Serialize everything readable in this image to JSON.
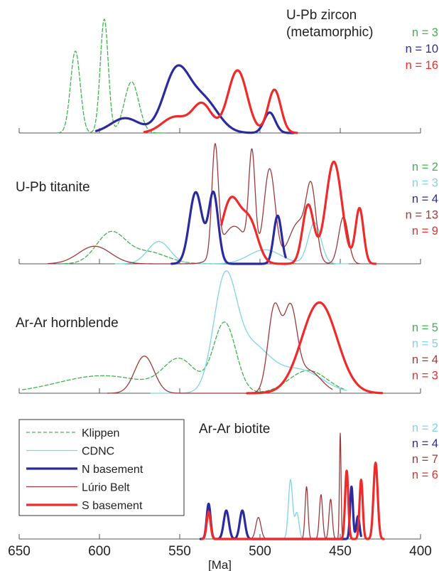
{
  "chart_data": {
    "type": "line",
    "xlabel": "[Ma]",
    "x_axis_reversed": true,
    "xlim": [
      650,
      400
    ],
    "xticks": [
      650,
      600,
      550,
      500,
      450,
      400
    ],
    "series_styles": [
      {
        "name": "Klippen",
        "color": "#3cb44b",
        "dash": "dashed",
        "weight": "thin"
      },
      {
        "name": "CDNC",
        "color": "#7fd3e6",
        "dash": "solid",
        "weight": "thin"
      },
      {
        "name": "N basement",
        "color": "#2b2b9e",
        "dash": "solid",
        "weight": "thick"
      },
      {
        "name": "Lúrio Belt",
        "color": "#9b3a3a",
        "dash": "solid",
        "weight": "thin"
      },
      {
        "name": "S basement",
        "color": "#ee2a2a",
        "dash": "solid",
        "weight": "thick"
      }
    ],
    "legend": {
      "placement": "bottom-left",
      "entries": [
        "Klippen",
        "CDNC",
        "N basement",
        "Lúrio Belt",
        "S basement"
      ]
    },
    "panels": [
      {
        "title_lines": [
          "U-Pb zircon",
          "(metamorphic)"
        ],
        "counts": [
          {
            "series": "Klippen",
            "text": "n = 3"
          },
          {
            "series": "N basement",
            "text": "n = 10"
          },
          {
            "series": "S basement",
            "text": "n = 16"
          }
        ],
        "curves": {
          "Klippen": {
            "range": [
              626,
              559
            ],
            "peaks": [
              [
                615,
                0.72,
                3
              ],
              [
                597,
                1.0,
                2.5
              ],
              [
                580,
                0.45,
                4.5
              ]
            ]
          },
          "N basement": {
            "range": [
              602,
              479
            ],
            "peaks": [
              [
                584,
                0.13,
                9
              ],
              [
                552,
                0.54,
                8
              ],
              [
                535,
                0.28,
                9
              ],
              [
                494,
                0.18,
                3.5
              ]
            ]
          },
          "S basement": {
            "range": [
              572,
              477
            ],
            "peaks": [
              [
                553,
                0.14,
                8
              ],
              [
                536,
                0.25,
                6
              ],
              [
                514,
                0.55,
                6
              ],
              [
                491,
                0.38,
                4
              ]
            ]
          }
        }
      },
      {
        "title_lines": [
          "U-Pb titanite"
        ],
        "counts": [
          {
            "series": "Klippen",
            "text": "n = 2"
          },
          {
            "series": "CDNC",
            "text": "n = 3"
          },
          {
            "series": "N basement",
            "text": "n = 4"
          },
          {
            "series": "Lúrio Belt",
            "text": "n = 13"
          },
          {
            "series": "S basement",
            "text": "n = 9"
          }
        ],
        "curves": {
          "Klippen": {
            "range": [
              622,
              510
            ],
            "peaks": [
              [
                593,
                0.26,
                9
              ],
              [
                570,
                0.1,
                12
              ]
            ]
          },
          "CDNC": {
            "range": [
              590,
              445
            ],
            "peaks": [
              [
                563,
                0.19,
                7
              ],
              [
                497,
                0.12,
                10
              ],
              [
                466,
                0.35,
                4
              ]
            ]
          },
          "N basement": {
            "range": [
              555,
              484
            ],
            "peaks": [
              [
                540,
                0.61,
                4
              ],
              [
                529,
                0.6,
                3
              ],
              [
                489,
                0.41,
                2.5
              ]
            ]
          },
          "Lúrio Belt": {
            "range": [
              632,
              438
            ],
            "peaks": [
              [
                603,
                0.15,
                10
              ],
              [
                528,
                0.92,
                2
              ],
              [
                516,
                0.32,
                8
              ],
              [
                505,
                0.85,
                2
              ],
              [
                494,
                0.8,
                3.5
              ],
              [
                476,
                0.35,
                6
              ],
              [
                468,
                0.55,
                3
              ],
              [
                448,
                0.4,
                3
              ]
            ]
          },
          "S basement": {
            "range": [
              524,
              428
            ],
            "peaks": [
              [
                518,
                0.55,
                6
              ],
              [
                506,
                0.32,
                5
              ],
              [
                470,
                0.5,
                3.5
              ],
              [
                454,
                0.87,
                5
              ],
              [
                438,
                0.47,
                2.5
              ]
            ]
          }
        }
      },
      {
        "title_lines": [
          "Ar-Ar hornblende"
        ],
        "counts": [
          {
            "series": "Klippen",
            "text": "n = 5"
          },
          {
            "series": "CDNC",
            "text": "n = 5"
          },
          {
            "series": "Lúrio Belt",
            "text": "n = 4"
          },
          {
            "series": "S basement",
            "text": "n = 3"
          }
        ],
        "curves": {
          "Klippen": {
            "range": [
              648,
              448
            ],
            "peaks": [
              [
                598,
                0.17,
                28
              ],
              [
                550,
                0.3,
                10
              ],
              [
                522,
                0.68,
                7
              ],
              [
                470,
                0.22,
                12
              ]
            ]
          },
          "CDNC": {
            "range": [
              568,
              446
            ],
            "peaks": [
              [
                522,
                0.99,
                7
              ],
              [
                506,
                0.45,
                12
              ],
              [
                475,
                0.22,
                14
              ]
            ]
          },
          "Lúrio Belt": {
            "range": [
              595,
              455
            ],
            "peaks": [
              [
                572,
                0.36,
                6
              ],
              [
                491,
                0.83,
                4
              ],
              [
                481,
                0.75,
                4
              ],
              [
                470,
                0.22,
                8
              ]
            ]
          },
          "S basement": {
            "range": [
              508,
              424
            ],
            "peaks": [
              [
                463,
                0.88,
                11
              ]
            ]
          }
        }
      },
      {
        "title_lines": [
          "Ar-Ar biotite"
        ],
        "counts": [
          {
            "series": "CDNC",
            "text": "n = 2"
          },
          {
            "series": "N basement",
            "text": "n = 4"
          },
          {
            "series": "Lúrio Belt",
            "text": "n = 7"
          },
          {
            "series": "S basement",
            "text": "n = 6"
          }
        ],
        "curves": {
          "CDNC": {
            "range": [
              487,
              472
            ],
            "peaks": [
              [
                481,
                0.52,
                1.3
              ],
              [
                477,
                0.23,
                1.3
              ]
            ]
          },
          "N basement": {
            "range": [
              537,
              437
            ],
            "peaks": [
              [
                532,
                0.31,
                1.2
              ],
              [
                521,
                0.25,
                1.6
              ],
              [
                511,
                0.25,
                1.6
              ],
              [
                443,
                0.46,
                0.9
              ],
              [
                439,
                0.2,
                1
              ]
            ]
          },
          "Lúrio Belt": {
            "range": [
              536,
              446
            ],
            "peaks": [
              [
                532,
                0.24,
                1.2
              ],
              [
                501,
                0.19,
                1.6
              ],
              [
                471,
                0.46,
                0.9
              ],
              [
                462,
                0.39,
                1
              ],
              [
                456,
                0.35,
                1
              ],
              [
                450,
                0.93,
                0.5
              ]
            ]
          },
          "S basement": {
            "range": [
              536,
              423
            ],
            "peaks": [
              [
                532,
                0.24,
                1.2
              ],
              [
                446,
                0.6,
                1
              ],
              [
                437,
                0.52,
                1
              ],
              [
                428,
                0.67,
                1.3
              ]
            ]
          }
        }
      }
    ]
  }
}
